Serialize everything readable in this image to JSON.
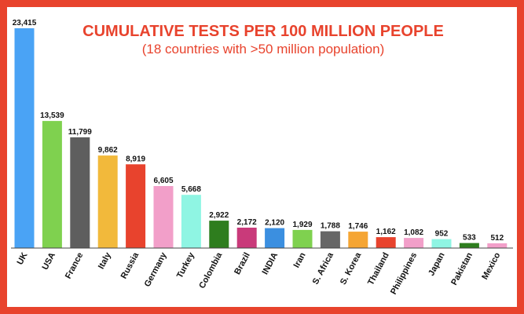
{
  "title": "CUMULATIVE TESTS PER 100 MILLION PEOPLE",
  "subtitle": "(18 countries with >50 million population)",
  "colors": {
    "border": "#e8432d",
    "title": "#e8432d",
    "baseline": "#444444"
  },
  "chart_data": {
    "type": "bar",
    "title": "CUMULATIVE TESTS PER 100 MILLION PEOPLE",
    "subtitle": "(18 countries with >50 million population)",
    "xlabel": "",
    "ylabel": "",
    "ylim": [
      0,
      23415
    ],
    "grid": false,
    "legend": "none",
    "categories": [
      "UK",
      "USA",
      "France",
      "Italy",
      "Russia",
      "Germany",
      "Turkey",
      "Colombia",
      "Brazil",
      "INDIA",
      "Iran",
      "S. Africa",
      "S. Korea",
      "Thailand",
      "Philippines",
      "Japan",
      "Pakistan",
      "Mexico"
    ],
    "values": [
      23415,
      13539,
      11799,
      9862,
      8919,
      6605,
      5668,
      2922,
      2172,
      2120,
      1929,
      1788,
      1746,
      1162,
      1082,
      952,
      533,
      512
    ],
    "value_labels": [
      "23,415",
      "13,539",
      "11,799",
      "9,862",
      "8,919",
      "6,605",
      "5,668",
      "2,922",
      "2,172",
      "2,120",
      "1,929",
      "1,788",
      "1,746",
      "1,162",
      "1,082",
      "952",
      "533",
      "512"
    ],
    "bar_colors": [
      "#4aa3f5",
      "#7fd14f",
      "#5e5e5e",
      "#f2b93b",
      "#e8432d",
      "#f29fc9",
      "#8ff5e3",
      "#2e7d1e",
      "#c93a7a",
      "#3b8fe0",
      "#7fd14f",
      "#666666",
      "#f5a533",
      "#e8432d",
      "#f29fc9",
      "#8ff5e3",
      "#2e7d1e",
      "#f29fc9"
    ]
  }
}
